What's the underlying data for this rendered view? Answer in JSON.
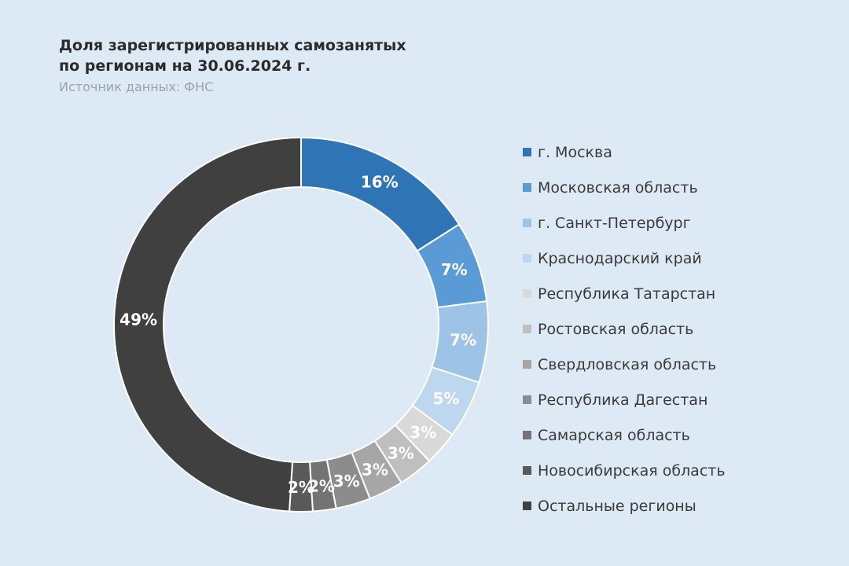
{
  "title_line1": "Доля зарегистрированных самозанятых",
  "title_line2": "по регионам на 30.06.2024 г.",
  "source": "Источник данных: ФНС",
  "chart_data": {
    "type": "pie",
    "title": "Доля зарегистрированных самозанятых по регионам на 30.06.2024 г.",
    "subtitle": "Источник данных: ФНС",
    "legend_position": "right",
    "unit": "%",
    "categories": [
      "г. Москва",
      "Московская область",
      "г. Санкт-Петербург",
      "Краснодарский край",
      "Республика Татарстан",
      "Ростовская область",
      "Свердловская область",
      "Республика Дагестан",
      "Самарская область",
      "Новосибирская область",
      "Остальные регионы"
    ],
    "values": [
      16,
      7,
      7,
      5,
      3,
      3,
      3,
      3,
      2,
      2,
      49
    ],
    "labels": [
      "16%",
      "7%",
      "7%",
      "5%",
      "3%",
      "3%",
      "3%",
      "3%",
      "2%",
      "2%",
      "49%"
    ],
    "colors": [
      "#2f74b5",
      "#5b9bd5",
      "#9dc3e6",
      "#bdd7ee",
      "#d9d9d9",
      "#bfbfbf",
      "#a6a6a6",
      "#8c8c8c",
      "#737373",
      "#595959",
      "#404040"
    ]
  }
}
